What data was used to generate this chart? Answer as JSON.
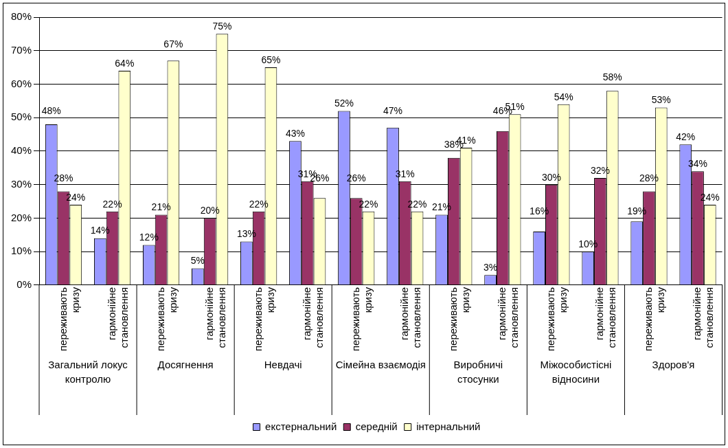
{
  "chart_data": {
    "type": "bar",
    "categories": [
      "переживають кризу",
      "гармонійне становлення",
      "переживають кризу",
      "гармонійне становлення",
      "переживають кризу",
      "гармонійне становлення",
      "переживають кризу",
      "гармонійне становлення",
      "переживають кризу",
      "гармонійне становлення",
      "переживають кризу",
      "гармонійне становлення",
      "переживають кризу",
      "гармонійне становлення"
    ],
    "annotations": [
      "Загальний локус контролю",
      "Досягнення",
      "Невдачі",
      "Сімейна взаємодія",
      "Виробничі стосунки",
      "Міжособистісні відносини",
      "Здоров'я"
    ],
    "series": [
      {
        "name": "екстернальний",
        "color": "#9999ff",
        "values": [
          48,
          14,
          12,
          5,
          13,
          43,
          52,
          47,
          21,
          3,
          16,
          10,
          19,
          42
        ],
        "value_labels": [
          "48%",
          "14%",
          "12%",
          "5%",
          "13%",
          "43%",
          "52%",
          "47%",
          "21%",
          "3%",
          "16%",
          "10%",
          "19%",
          "42%"
        ]
      },
      {
        "name": "середній",
        "color": "#993366",
        "values": [
          28,
          22,
          21,
          20,
          22,
          31,
          26,
          31,
          38,
          46,
          30,
          32,
          28,
          34
        ],
        "value_labels": [
          "28%",
          "22%",
          "21%",
          "20%",
          "22%",
          "31%",
          "26%",
          "31%",
          "38%",
          "46%",
          "30%",
          "32%",
          "28%",
          "34%"
        ]
      },
      {
        "name": "інтернальний",
        "color": "#ffffcc",
        "values": [
          24,
          64,
          67,
          75,
          65,
          26,
          22,
          22,
          41,
          51,
          54,
          58,
          53,
          24
        ],
        "value_labels": [
          "24%",
          "64%",
          "67%",
          "75%",
          "65%",
          "26%",
          "22%",
          "22%",
          "41%",
          "51%",
          "54%",
          "58%",
          "53%",
          "24%"
        ]
      }
    ],
    "ylim": [
      0,
      80
    ],
    "yticks": [
      {
        "value": 0,
        "label": "0%"
      },
      {
        "value": 10,
        "label": "10%"
      },
      {
        "value": 20,
        "label": "20%"
      },
      {
        "value": 30,
        "label": "30%"
      },
      {
        "value": 40,
        "label": "40%"
      },
      {
        "value": 50,
        "label": "50%"
      },
      {
        "value": 60,
        "label": "60%"
      },
      {
        "value": 70,
        "label": "70%"
      },
      {
        "value": 80,
        "label": "80%"
      }
    ],
    "grid": "y",
    "legend": "bottom"
  }
}
